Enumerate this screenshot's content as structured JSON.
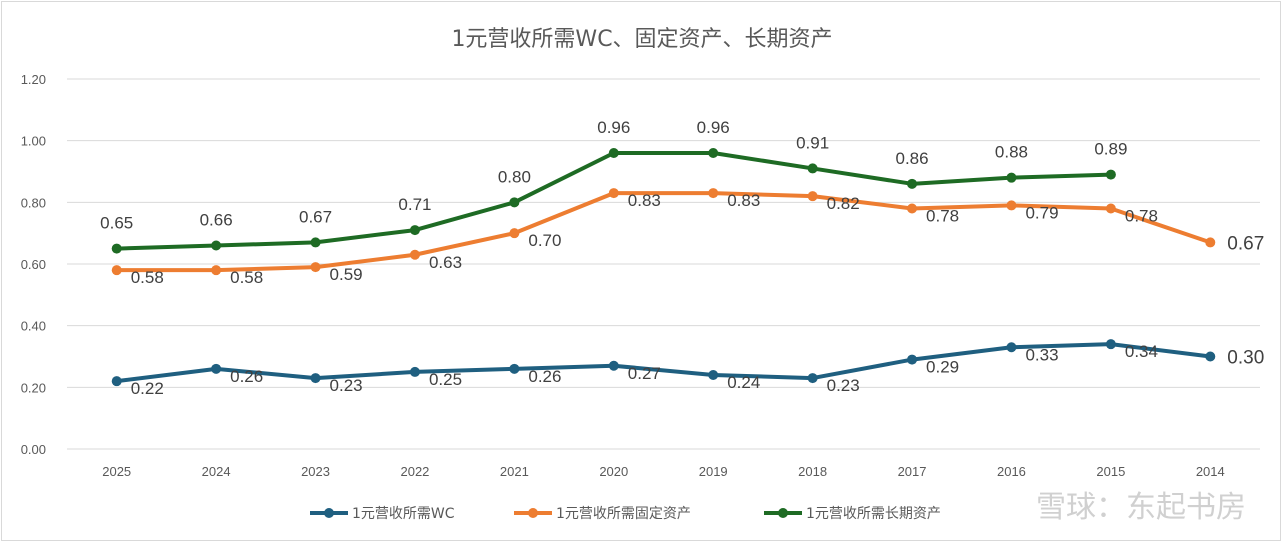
{
  "chart_data": {
    "type": "line",
    "title": "1元营收所需WC、固定资产、长期资产",
    "categories": [
      "2025",
      "2024",
      "2023",
      "2022",
      "2021",
      "2020",
      "2019",
      "2018",
      "2017",
      "2016",
      "2015",
      "2014"
    ],
    "y_ticks": [
      "0.00",
      "0.20",
      "0.40",
      "0.60",
      "0.80",
      "1.00",
      "1.20"
    ],
    "ylim": [
      0,
      1.2
    ],
    "grid": true,
    "legend_position": "bottom",
    "series": [
      {
        "name": "1元营收所需WC",
        "color": "#1f5f80",
        "label_pos": "below",
        "values": [
          0.22,
          0.26,
          0.23,
          0.25,
          0.26,
          0.27,
          0.24,
          0.23,
          0.29,
          0.33,
          0.34,
          0.3
        ]
      },
      {
        "name": "1元营收所需固定资产",
        "color": "#ed7d31",
        "label_pos": "below",
        "values": [
          0.58,
          0.58,
          0.59,
          0.63,
          0.7,
          0.83,
          0.83,
          0.82,
          0.78,
          0.79,
          0.78,
          0.67
        ]
      },
      {
        "name": "1元营收所需长期资产",
        "color": "#1e6b24",
        "label_pos": "above",
        "values": [
          0.65,
          0.66,
          0.67,
          0.71,
          0.8,
          0.96,
          0.96,
          0.91,
          0.86,
          0.88,
          0.89,
          null
        ]
      }
    ]
  },
  "watermark": "雪球：东起书房"
}
